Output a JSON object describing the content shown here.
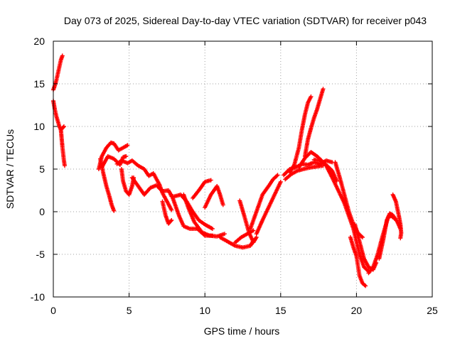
{
  "chart_data": {
    "type": "scatter",
    "title": "Day 073 of 2025, Sidereal Day-to-day VTEC variation (SDTVAR) for receiver p043",
    "xlabel": "GPS time / hours",
    "ylabel": "SDTVAR / TECUs",
    "xlim": [
      0,
      25
    ],
    "ylim": [
      -10,
      20
    ],
    "xticks": [
      0,
      5,
      10,
      15,
      20,
      25
    ],
    "yticks": [
      -10,
      -5,
      0,
      5,
      10,
      15,
      20
    ],
    "grid": true,
    "marker": "+",
    "color": "#ff0000",
    "tracks": [
      [
        [
          0.0,
          14.3
        ],
        [
          0.1,
          14.8
        ],
        [
          0.2,
          15.4
        ],
        [
          0.3,
          16.2
        ],
        [
          0.4,
          17.0
        ],
        [
          0.5,
          17.8
        ],
        [
          0.6,
          18.3
        ]
      ],
      [
        [
          0.0,
          13.0
        ],
        [
          0.1,
          12.0
        ],
        [
          0.2,
          11.2
        ],
        [
          0.3,
          10.6
        ],
        [
          0.4,
          10.0
        ],
        [
          0.5,
          9.6
        ],
        [
          0.6,
          9.8
        ],
        [
          0.7,
          10.0
        ]
      ],
      [
        [
          0.5,
          9.6
        ],
        [
          0.55,
          8.6
        ],
        [
          0.6,
          7.6
        ],
        [
          0.65,
          6.8
        ],
        [
          0.7,
          6.0
        ],
        [
          0.75,
          5.4
        ]
      ],
      [
        [
          3.0,
          5.0
        ],
        [
          3.2,
          6.5
        ],
        [
          3.5,
          7.5
        ],
        [
          3.8,
          8.1
        ],
        [
          4.0,
          8.0
        ],
        [
          4.3,
          7.2
        ],
        [
          4.7,
          7.6
        ],
        [
          4.9,
          7.8
        ]
      ],
      [
        [
          3.1,
          6.2
        ],
        [
          3.3,
          4.5
        ],
        [
          3.5,
          3.0
        ],
        [
          3.7,
          1.8
        ],
        [
          3.85,
          0.8
        ],
        [
          4.0,
          0.1
        ]
      ],
      [
        [
          3.2,
          5.2
        ],
        [
          3.6,
          6.5
        ],
        [
          4.0,
          6.2
        ],
        [
          4.4,
          5.5
        ],
        [
          4.6,
          6.4
        ],
        [
          4.8,
          6.5
        ]
      ],
      [
        [
          4.5,
          5.0
        ],
        [
          4.6,
          3.6
        ],
        [
          4.8,
          2.4
        ],
        [
          5.0,
          2.0
        ],
        [
          5.2,
          3.0
        ],
        [
          5.3,
          4.0
        ]
      ],
      [
        [
          4.2,
          5.6
        ],
        [
          4.5,
          6.0
        ],
        [
          4.9,
          5.7
        ],
        [
          5.2,
          6.0
        ],
        [
          5.6,
          5.4
        ],
        [
          6.0,
          5.0
        ],
        [
          6.3,
          4.2
        ],
        [
          6.6,
          4.5
        ],
        [
          7.0,
          3.2
        ],
        [
          7.2,
          2.2
        ],
        [
          7.5,
          1.2
        ],
        [
          7.8,
          0.2
        ]
      ],
      [
        [
          5.2,
          4.0
        ],
        [
          5.6,
          3.0
        ],
        [
          6.0,
          2.0
        ],
        [
          6.4,
          2.8
        ],
        [
          6.8,
          3.1
        ],
        [
          7.2,
          2.4
        ],
        [
          7.6,
          2.5
        ],
        [
          7.8,
          1.8
        ]
      ],
      [
        [
          7.2,
          1.2
        ],
        [
          7.4,
          -0.4
        ],
        [
          7.6,
          -1.4
        ],
        [
          7.8,
          -1.0
        ]
      ],
      [
        [
          7.8,
          2.0
        ],
        [
          8.0,
          1.0
        ],
        [
          8.3,
          -0.5
        ],
        [
          8.6,
          -1.7
        ],
        [
          9.0,
          -2.0
        ],
        [
          9.5,
          -2.0
        ],
        [
          10.0,
          -2.8
        ],
        [
          10.5,
          -2.8
        ]
      ],
      [
        [
          8.0,
          1.8
        ],
        [
          8.4,
          2.0
        ],
        [
          8.8,
          1.2
        ],
        [
          9.2,
          0.0
        ],
        [
          9.6,
          -1.0
        ],
        [
          10.0,
          -1.5
        ],
        [
          10.5,
          -2.0
        ]
      ],
      [
        [
          8.6,
          2.0
        ],
        [
          8.9,
          0.5
        ],
        [
          9.3,
          -1.2
        ],
        [
          9.8,
          -2.4
        ],
        [
          10.3,
          -2.8
        ],
        [
          10.8,
          -2.9
        ],
        [
          11.3,
          -2.6
        ]
      ],
      [
        [
          9.2,
          1.6
        ],
        [
          9.6,
          2.5
        ],
        [
          10.0,
          3.5
        ],
        [
          10.4,
          3.7
        ]
      ],
      [
        [
          10.0,
          0.5
        ],
        [
          10.4,
          2.0
        ],
        [
          10.8,
          3.0
        ],
        [
          11.0,
          2.0
        ],
        [
          11.2,
          0.8
        ]
      ],
      [
        [
          11.0,
          -3.0
        ],
        [
          11.5,
          -3.5
        ],
        [
          12.0,
          -4.0
        ],
        [
          12.5,
          -4.2
        ],
        [
          13.0,
          -4.0
        ],
        [
          13.2,
          -3.4
        ]
      ],
      [
        [
          12.0,
          -3.6
        ],
        [
          12.4,
          -3.0
        ],
        [
          12.8,
          -2.6
        ],
        [
          13.2,
          -2.2
        ]
      ],
      [
        [
          12.3,
          1.3
        ],
        [
          12.6,
          -0.5
        ],
        [
          12.9,
          -2.4
        ],
        [
          13.2,
          -3.6
        ],
        [
          13.4,
          -3.0
        ]
      ],
      [
        [
          13.0,
          -2.0
        ],
        [
          13.4,
          0.0
        ],
        [
          13.8,
          2.0
        ],
        [
          14.2,
          3.0
        ],
        [
          14.5,
          3.8
        ],
        [
          14.8,
          4.3
        ]
      ],
      [
        [
          13.4,
          -2.6
        ],
        [
          13.8,
          -1.0
        ],
        [
          14.2,
          0.5
        ],
        [
          14.6,
          2.0
        ],
        [
          15.0,
          3.5
        ]
      ],
      [
        [
          15.2,
          4.3
        ],
        [
          15.6,
          5.0
        ],
        [
          16.0,
          5.2
        ],
        [
          16.4,
          5.6
        ],
        [
          16.8,
          5.5
        ],
        [
          17.2,
          5.8
        ],
        [
          17.6,
          5.6
        ],
        [
          18.0,
          6.0
        ],
        [
          18.4,
          5.8
        ]
      ],
      [
        [
          15.3,
          3.8
        ],
        [
          15.7,
          4.4
        ],
        [
          16.1,
          4.8
        ],
        [
          16.5,
          5.0
        ],
        [
          17.0,
          5.2
        ],
        [
          17.4,
          5.3
        ],
        [
          17.8,
          5.4
        ]
      ],
      [
        [
          15.6,
          4.6
        ],
        [
          15.9,
          5.5
        ],
        [
          16.2,
          7.5
        ],
        [
          16.4,
          9.6
        ],
        [
          16.6,
          11.4
        ],
        [
          16.8,
          12.8
        ],
        [
          17.0,
          13.5
        ]
      ],
      [
        [
          16.6,
          6.5
        ],
        [
          16.8,
          8.5
        ],
        [
          17.0,
          9.8
        ],
        [
          17.2,
          11.0
        ],
        [
          17.4,
          12.0
        ],
        [
          17.6,
          13.2
        ],
        [
          17.8,
          14.4
        ]
      ],
      [
        [
          16.2,
          5.2
        ],
        [
          16.6,
          6.3
        ],
        [
          17.0,
          7.0
        ],
        [
          17.4,
          6.5
        ],
        [
          17.7,
          6.0
        ]
      ],
      [
        [
          17.2,
          6.1
        ],
        [
          17.6,
          6.0
        ],
        [
          18.0,
          5.5
        ],
        [
          18.4,
          4.8
        ],
        [
          18.7,
          3.6
        ]
      ],
      [
        [
          18.0,
          5.4
        ],
        [
          18.4,
          4.0
        ],
        [
          18.8,
          2.5
        ],
        [
          19.2,
          1.0
        ],
        [
          19.5,
          -0.5
        ],
        [
          19.8,
          -2.0
        ],
        [
          20.0,
          -3.5
        ],
        [
          20.2,
          -5.0
        ],
        [
          20.5,
          -6.5
        ],
        [
          20.8,
          -7.0
        ]
      ],
      [
        [
          18.6,
          5.8
        ],
        [
          18.9,
          4.0
        ],
        [
          19.2,
          2.0
        ],
        [
          19.5,
          0.0
        ],
        [
          19.8,
          -1.5
        ],
        [
          20.1,
          -2.5
        ],
        [
          20.4,
          -3.0
        ]
      ],
      [
        [
          19.6,
          -3.0
        ],
        [
          19.8,
          -4.2
        ],
        [
          20.0,
          -5.2
        ],
        [
          20.2,
          -7.5
        ],
        [
          20.4,
          -8.4
        ],
        [
          20.6,
          -8.7
        ]
      ],
      [
        [
          19.9,
          -1.5
        ],
        [
          20.2,
          -3.5
        ],
        [
          20.5,
          -5.5
        ],
        [
          20.8,
          -6.5
        ],
        [
          21.1,
          -6.8
        ],
        [
          21.3,
          -6.0
        ]
      ],
      [
        [
          20.8,
          -7.2
        ],
        [
          21.1,
          -6.5
        ],
        [
          21.4,
          -5.0
        ],
        [
          21.7,
          -3.0
        ],
        [
          21.9,
          -1.8
        ],
        [
          22.1,
          -0.6
        ],
        [
          22.3,
          -0.5
        ],
        [
          22.5,
          -0.8
        ]
      ],
      [
        [
          21.5,
          -5.5
        ],
        [
          21.8,
          -3.0
        ],
        [
          22.0,
          -1.0
        ],
        [
          22.2,
          -0.2
        ],
        [
          22.4,
          -0.4
        ],
        [
          22.7,
          -1.2
        ],
        [
          22.9,
          -2.0
        ]
      ],
      [
        [
          22.4,
          2.0
        ],
        [
          22.6,
          1.2
        ],
        [
          22.8,
          -0.5
        ],
        [
          22.9,
          -1.5
        ],
        [
          22.95,
          -2.5
        ],
        [
          22.9,
          -3.1
        ]
      ]
    ]
  }
}
